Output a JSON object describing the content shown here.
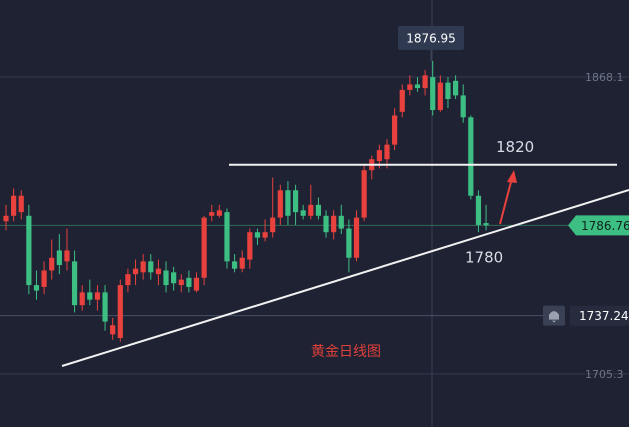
{
  "chart_data": {
    "type": "candlestick",
    "title": "黄金日线图",
    "open": [
      1789,
      1792,
      1794,
      1792,
      1754,
      1753,
      1762,
      1773,
      1767,
      1767,
      1743,
      1750,
      1746,
      1750,
      1727,
      1725,
      1754,
      1760,
      1761,
      1767,
      1760,
      1762,
      1761,
      1754,
      1758,
      1751,
      1758,
      1792,
      1792,
      1794,
      1767,
      1763,
      1768,
      1783,
      1780,
      1783,
      1791,
      1806,
      1806,
      1795,
      1792,
      1798,
      1792,
      1783,
      1792,
      1785,
      1769,
      1791,
      1817,
      1822,
      1823,
      1831,
      1849,
      1861,
      1864,
      1862,
      1868,
      1850,
      1865,
      1866,
      1858,
      1846,
      1803,
      1788
    ],
    "high": [
      1798,
      1807,
      1806,
      1798,
      1762,
      1767,
      1779,
      1782,
      1785,
      1773,
      1754,
      1757,
      1754,
      1754,
      1736,
      1757,
      1763,
      1768,
      1771,
      1771,
      1768,
      1767,
      1764,
      1760,
      1762,
      1761,
      1792,
      1798,
      1798,
      1796,
      1771,
      1773,
      1785,
      1785,
      1790,
      1813,
      1809,
      1811,
      1809,
      1798,
      1809,
      1802,
      1795,
      1795,
      1798,
      1790,
      1795,
      1820,
      1825,
      1831,
      1834,
      1851,
      1864,
      1869,
      1868,
      1872,
      1876.95,
      1869,
      1868,
      1869,
      1864,
      1847,
      1806,
      1798
    ],
    "low": [
      1784,
      1789,
      1790,
      1749,
      1746,
      1749,
      1757,
      1760,
      1762,
      1739,
      1740,
      1743,
      1740,
      1729,
      1724,
      1723,
      1750,
      1754,
      1757,
      1757,
      1754,
      1750,
      1751,
      1750,
      1750,
      1750,
      1754,
      1789,
      1791,
      1763,
      1761,
      1761,
      1763,
      1776,
      1778,
      1780,
      1787,
      1787,
      1787,
      1790,
      1790,
      1790,
      1780,
      1779,
      1782,
      1761,
      1767,
      1789,
      1812,
      1818,
      1818,
      1828,
      1846,
      1858,
      1860,
      1858,
      1847,
      1849,
      1851,
      1856,
      1843,
      1801,
      1783,
      1784
    ],
    "close": [
      1792,
      1803,
      1803,
      1754,
      1751,
      1762,
      1769,
      1765,
      1773,
      1743,
      1750,
      1746,
      1750,
      1734,
      1732,
      1754,
      1760,
      1763,
      1767,
      1761,
      1763,
      1754,
      1755,
      1757,
      1753,
      1758,
      1791,
      1794,
      1795,
      1767,
      1763,
      1769,
      1783,
      1780,
      1783,
      1791,
      1806,
      1792,
      1794,
      1792,
      1798,
      1792,
      1783,
      1792,
      1785,
      1769,
      1791,
      1817,
      1823,
      1828,
      1831,
      1847,
      1861,
      1864,
      1862,
      1869,
      1850,
      1865,
      1856,
      1858,
      1846,
      1803,
      1787,
      1786.76
    ],
    "up_color": "#e8413e",
    "down_color": "#3dbf84",
    "ylim": [
      1676.2,
      1910.3
    ],
    "yticks": [
      1868.1,
      1705.3
    ],
    "high_marker": 1876.95,
    "current_price": 1786.76,
    "alert_price": 1737.24,
    "resistance": 1820,
    "support_label": "1780"
  }
}
